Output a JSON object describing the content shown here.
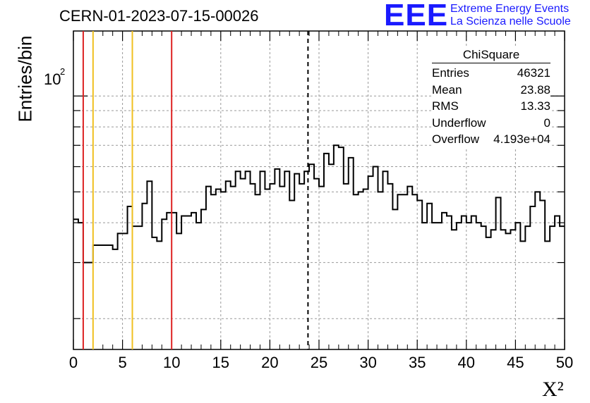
{
  "header": {
    "title": "CERN-01-2023-07-15-00026",
    "logo": "EEE",
    "logo_line1": "Extreme Energy Events",
    "logo_line2": "La Scienza nelle Scuole"
  },
  "stats": {
    "title": "ChiSquare",
    "rows": [
      {
        "label": "Entries",
        "value": "46321"
      },
      {
        "label": "Mean",
        "value": "23.88"
      },
      {
        "label": "RMS",
        "value": "13.33"
      },
      {
        "label": "Underflow",
        "value": "0"
      },
      {
        "label": "Overflow",
        "value": "4.193e+04"
      }
    ]
  },
  "chart_data": {
    "type": "histogram",
    "title": "CERN-01-2023-07-15-00026",
    "xlabel": "X²",
    "ylabel": "Entries/bin",
    "xlim": [
      0,
      50
    ],
    "ylim": [
      16,
      160
    ],
    "log_y": true,
    "grid": true,
    "bin_width": 0.5,
    "x_ticks": [
      0,
      5,
      10,
      15,
      20,
      25,
      30,
      35,
      40,
      45,
      50
    ],
    "y_tick_label": "10^2",
    "values": [
      41,
      40,
      30,
      30,
      34,
      34,
      34,
      34,
      33,
      37,
      37,
      45,
      39,
      39,
      46,
      54,
      36,
      35,
      41,
      43,
      43,
      37,
      42,
      42,
      43,
      40,
      44,
      52,
      49,
      51,
      50,
      54,
      52,
      58,
      55,
      58,
      53,
      49,
      58,
      51,
      53,
      59,
      52,
      58,
      47,
      57,
      53,
      58,
      61,
      55,
      52,
      66,
      61,
      70,
      69,
      53,
      64,
      49,
      50,
      51,
      56,
      60,
      50,
      58,
      53,
      44,
      49,
      49,
      52,
      49,
      47,
      40,
      46,
      40,
      40,
      43,
      42,
      38,
      40,
      42,
      40,
      42,
      40,
      39,
      36,
      38,
      48,
      38,
      37,
      38,
      40,
      35,
      39,
      45,
      50,
      47,
      35,
      39,
      42,
      39
    ],
    "reference_lines": [
      {
        "x": 1,
        "color": "#dd2222",
        "style": "solid"
      },
      {
        "x": 2,
        "color": "#f0c020",
        "style": "solid"
      },
      {
        "x": 6,
        "color": "#f0c020",
        "style": "solid"
      },
      {
        "x": 10,
        "color": "#dd2222",
        "style": "solid"
      },
      {
        "x": 23.88,
        "color": "#000000",
        "style": "dashed"
      }
    ]
  }
}
